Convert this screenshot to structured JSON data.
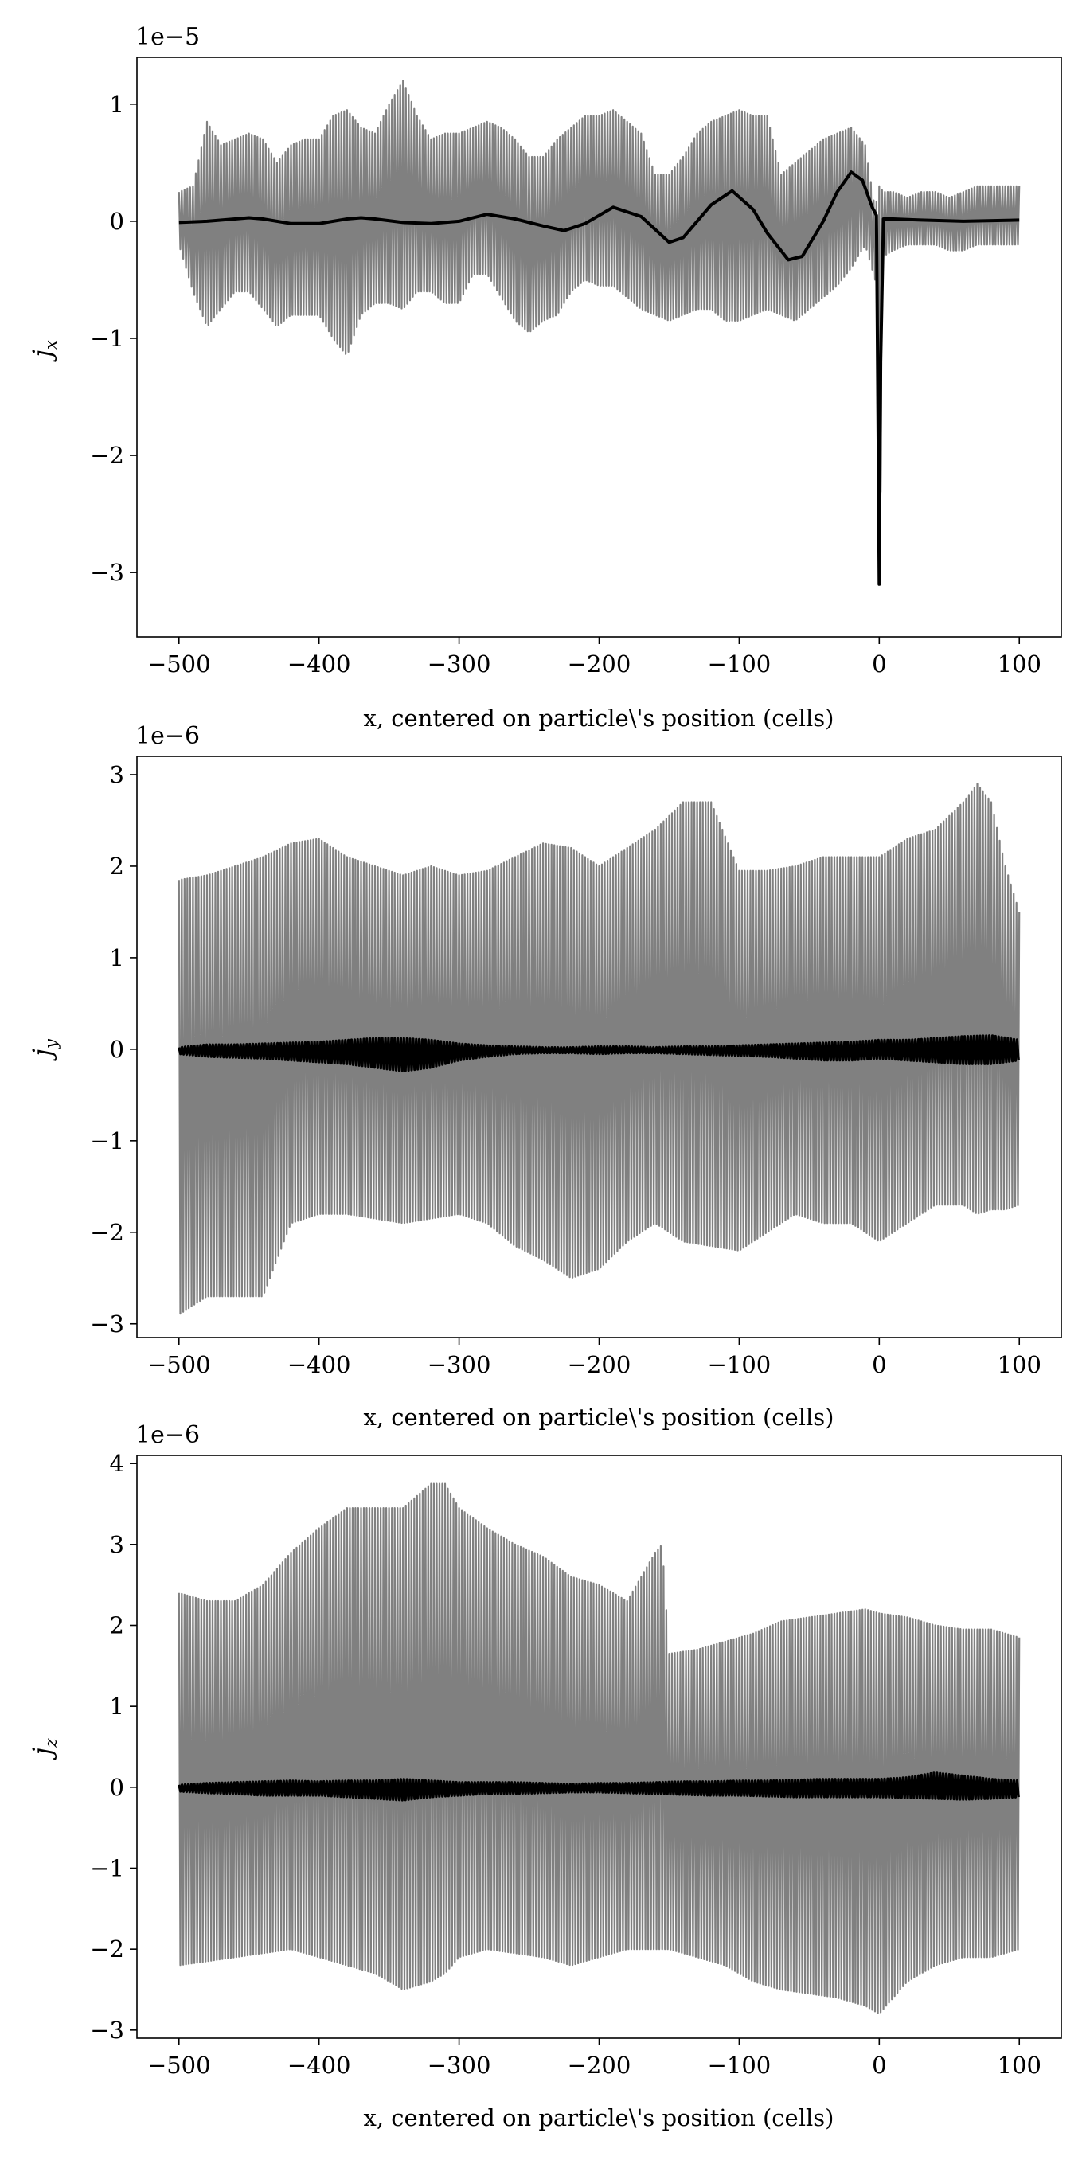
{
  "figure": {
    "xlabel": "x, centered on particle\\'s position (cells)"
  },
  "chart_data": [
    {
      "type": "line",
      "title": "",
      "xlabel": "x, centered on particle\\'s position (cells)",
      "ylabel_symbol": "j",
      "ylabel_sub": "x",
      "offset_text": "1e−5",
      "xlim": [
        -530,
        130
      ],
      "ylim": [
        -3.55,
        1.4
      ],
      "grid": false,
      "legend": "none",
      "xticks": [
        -500,
        -400,
        -300,
        -200,
        -100,
        0,
        100
      ],
      "xtick_labels": [
        "−500",
        "−400",
        "−300",
        "−200",
        "−100",
        "0",
        "100"
      ],
      "yticks": [
        -3,
        -2,
        -1,
        0,
        1
      ],
      "ytick_labels": [
        "−3",
        "−2",
        "−1",
        "0",
        "1"
      ],
      "series": [
        {
          "color": "#808080",
          "style": "dense-oscillation",
          "x": [
            -500,
            -490,
            -480,
            -470,
            -460,
            -450,
            -440,
            -430,
            -420,
            -410,
            -400,
            -390,
            -380,
            -370,
            -360,
            -350,
            -340,
            -330,
            -320,
            -310,
            -300,
            -290,
            -280,
            -270,
            -260,
            -250,
            -240,
            -230,
            -220,
            -210,
            -200,
            -190,
            -180,
            -170,
            -160,
            -150,
            -140,
            -130,
            -120,
            -110,
            -100,
            -90,
            -80,
            -70,
            -60,
            -50,
            -40,
            -30,
            -20,
            -10,
            -3,
            0,
            3,
            10,
            20,
            30,
            40,
            50,
            60,
            70,
            80,
            90,
            100
          ],
          "upper": [
            0.25,
            0.3,
            0.85,
            0.65,
            0.7,
            0.75,
            0.7,
            0.5,
            0.65,
            0.7,
            0.7,
            0.9,
            0.95,
            0.8,
            0.75,
            1.0,
            1.2,
            0.9,
            0.7,
            0.75,
            0.75,
            0.8,
            0.85,
            0.8,
            0.7,
            0.55,
            0.55,
            0.7,
            0.8,
            0.9,
            0.9,
            0.95,
            0.85,
            0.75,
            0.4,
            0.4,
            0.55,
            0.75,
            0.85,
            0.9,
            0.95,
            0.9,
            0.9,
            0.4,
            0.5,
            0.6,
            0.7,
            0.75,
            0.8,
            0.65,
            0.1,
            0.3,
            0.25,
            0.25,
            0.2,
            0.25,
            0.25,
            0.2,
            0.25,
            0.3,
            0.3,
            0.3,
            0.3
          ],
          "lower": [
            -0.2,
            -0.6,
            -0.9,
            -0.75,
            -0.6,
            -0.6,
            -0.75,
            -0.9,
            -0.8,
            -0.8,
            -0.8,
            -1.0,
            -1.15,
            -0.8,
            -0.7,
            -0.7,
            -0.75,
            -0.6,
            -0.6,
            -0.7,
            -0.7,
            -0.45,
            -0.45,
            -0.65,
            -0.85,
            -0.95,
            -0.85,
            -0.8,
            -0.6,
            -0.5,
            -0.55,
            -0.55,
            -0.65,
            -0.75,
            -0.8,
            -0.85,
            -0.8,
            -0.75,
            -0.75,
            -0.85,
            -0.85,
            -0.8,
            -0.75,
            -0.8,
            -0.85,
            -0.75,
            -0.65,
            -0.55,
            -0.4,
            -0.2,
            -0.5,
            -3.32,
            -0.3,
            -0.25,
            -0.2,
            -0.2,
            -0.2,
            -0.25,
            -0.25,
            -0.2,
            -0.2,
            -0.2,
            -0.2
          ]
        },
        {
          "color": "#000000",
          "style": "solid",
          "x": [
            -500,
            -480,
            -460,
            -450,
            -440,
            -420,
            -400,
            -380,
            -370,
            -360,
            -340,
            -320,
            -300,
            -280,
            -260,
            -240,
            -225,
            -210,
            -190,
            -170,
            -150,
            -140,
            -130,
            -120,
            -105,
            -90,
            -80,
            -65,
            -55,
            -40,
            -30,
            -20,
            -12,
            -5,
            -2,
            -1,
            0,
            1,
            3,
            10,
            30,
            60,
            100
          ],
          "y": [
            -0.01,
            0.0,
            0.02,
            0.03,
            0.02,
            -0.02,
            -0.02,
            0.02,
            0.03,
            0.02,
            -0.01,
            -0.02,
            0.0,
            0.06,
            0.02,
            -0.04,
            -0.08,
            -0.02,
            0.12,
            0.04,
            -0.18,
            -0.14,
            0.0,
            0.14,
            0.26,
            0.1,
            -0.1,
            -0.33,
            -0.3,
            0.0,
            0.25,
            0.42,
            0.35,
            0.12,
            0.05,
            -1.5,
            -3.1,
            -1.2,
            0.02,
            0.02,
            0.01,
            0.0,
            0.01
          ]
        }
      ]
    },
    {
      "type": "line",
      "title": "",
      "xlabel": "x, centered on particle\\'s position (cells)",
      "ylabel_symbol": "j",
      "ylabel_sub": "y",
      "offset_text": "1e−6",
      "xlim": [
        -530,
        130
      ],
      "ylim": [
        -3.15,
        3.2
      ],
      "grid": false,
      "legend": "none",
      "xticks": [
        -500,
        -400,
        -300,
        -200,
        -100,
        0,
        100
      ],
      "xtick_labels": [
        "−500",
        "−400",
        "−300",
        "−200",
        "−100",
        "0",
        "100"
      ],
      "yticks": [
        -3,
        -2,
        -1,
        0,
        1,
        2,
        3
      ],
      "ytick_labels": [
        "−3",
        "−2",
        "−1",
        "0",
        "1",
        "2",
        "3"
      ],
      "series": [
        {
          "color": "#808080",
          "style": "dense-oscillation",
          "x": [
            -500,
            -480,
            -460,
            -440,
            -420,
            -400,
            -380,
            -360,
            -340,
            -320,
            -300,
            -280,
            -260,
            -240,
            -220,
            -200,
            -180,
            -160,
            -140,
            -120,
            -100,
            -80,
            -60,
            -40,
            -20,
            0,
            20,
            40,
            60,
            70,
            80,
            90,
            100
          ],
          "upper": [
            1.85,
            1.9,
            2.0,
            2.1,
            2.25,
            2.3,
            2.1,
            2.0,
            1.9,
            2.0,
            1.9,
            1.95,
            2.1,
            2.25,
            2.2,
            2.0,
            2.2,
            2.4,
            2.7,
            2.7,
            1.95,
            1.95,
            2.0,
            2.1,
            2.1,
            2.1,
            2.3,
            2.4,
            2.7,
            2.9,
            2.7,
            2.0,
            1.5
          ],
          "lower": [
            -2.9,
            -2.7,
            -2.7,
            -2.7,
            -1.9,
            -1.8,
            -1.8,
            -1.85,
            -1.9,
            -1.85,
            -1.8,
            -1.9,
            -2.15,
            -2.3,
            -2.5,
            -2.4,
            -2.1,
            -1.9,
            -2.1,
            -2.15,
            -2.2,
            -2.0,
            -1.8,
            -1.9,
            -1.9,
            -2.1,
            -1.9,
            -1.7,
            -1.7,
            -1.8,
            -1.75,
            -1.75,
            -1.7
          ]
        },
        {
          "color": "#000000",
          "style": "thick-oscillation",
          "x": [
            -500,
            -480,
            -460,
            -440,
            -420,
            -400,
            -380,
            -360,
            -340,
            -320,
            -300,
            -280,
            -260,
            -240,
            -220,
            -200,
            -180,
            -160,
            -140,
            -120,
            -100,
            -80,
            -60,
            -40,
            -20,
            0,
            20,
            40,
            60,
            80,
            100
          ],
          "upper": [
            0.02,
            0.05,
            0.05,
            0.06,
            0.07,
            0.08,
            0.1,
            0.12,
            0.12,
            0.1,
            0.06,
            0.04,
            0.03,
            0.02,
            0.02,
            0.03,
            0.03,
            0.02,
            0.03,
            0.03,
            0.04,
            0.05,
            0.06,
            0.07,
            0.08,
            0.1,
            0.1,
            0.12,
            0.14,
            0.15,
            0.1
          ],
          "lower": [
            -0.05,
            -0.08,
            -0.09,
            -0.1,
            -0.12,
            -0.14,
            -0.16,
            -0.2,
            -0.24,
            -0.2,
            -0.12,
            -0.08,
            -0.05,
            -0.04,
            -0.04,
            -0.05,
            -0.04,
            -0.04,
            -0.05,
            -0.06,
            -0.07,
            -0.08,
            -0.1,
            -0.12,
            -0.12,
            -0.1,
            -0.12,
            -0.14,
            -0.16,
            -0.16,
            -0.12
          ]
        }
      ]
    },
    {
      "type": "line",
      "title": "",
      "xlabel": "x, centered on particle\\'s position (cells)",
      "ylabel_symbol": "j",
      "ylabel_sub": "z",
      "offset_text": "1e−6",
      "xlim": [
        -530,
        130
      ],
      "ylim": [
        -3.1,
        4.1
      ],
      "grid": false,
      "legend": "none",
      "xticks": [
        -500,
        -400,
        -300,
        -200,
        -100,
        0,
        100
      ],
      "xtick_labels": [
        "−500",
        "−400",
        "−300",
        "−200",
        "−100",
        "0",
        "100"
      ],
      "yticks": [
        -3,
        -2,
        -1,
        0,
        1,
        2,
        3,
        4
      ],
      "ytick_labels": [
        "−3",
        "−2",
        "−1",
        "0",
        "1",
        "2",
        "3",
        "4"
      ],
      "series": [
        {
          "color": "#808080",
          "style": "dense-oscillation",
          "x": [
            -500,
            -480,
            -460,
            -440,
            -420,
            -400,
            -380,
            -360,
            -340,
            -320,
            -310,
            -300,
            -280,
            -260,
            -240,
            -220,
            -200,
            -180,
            -170,
            -160,
            -155,
            -150,
            -130,
            -110,
            -90,
            -70,
            -50,
            -30,
            -10,
            0,
            20,
            40,
            60,
            80,
            100
          ],
          "upper": [
            2.4,
            2.3,
            2.3,
            2.5,
            2.9,
            3.2,
            3.45,
            3.45,
            3.45,
            3.75,
            3.75,
            3.45,
            3.2,
            3.0,
            2.85,
            2.6,
            2.5,
            2.3,
            2.6,
            2.9,
            3.0,
            1.65,
            1.7,
            1.8,
            1.9,
            2.05,
            2.1,
            2.15,
            2.2,
            2.15,
            2.1,
            2.0,
            1.95,
            1.95,
            1.85
          ],
          "lower": [
            -2.2,
            -2.15,
            -2.1,
            -2.05,
            -2.0,
            -2.1,
            -2.2,
            -2.3,
            -2.5,
            -2.4,
            -2.3,
            -2.1,
            -2.0,
            -2.05,
            -2.1,
            -2.2,
            -2.1,
            -2.0,
            -2.0,
            -2.0,
            -2.0,
            -2.0,
            -2.1,
            -2.2,
            -2.4,
            -2.5,
            -2.55,
            -2.6,
            -2.7,
            -2.8,
            -2.4,
            -2.2,
            -2.1,
            -2.1,
            -2.0
          ]
        },
        {
          "color": "#000000",
          "style": "thick-oscillation",
          "x": [
            -500,
            -480,
            -460,
            -440,
            -420,
            -400,
            -380,
            -360,
            -340,
            -320,
            -300,
            -280,
            -260,
            -240,
            -220,
            -200,
            -180,
            -160,
            -140,
            -120,
            -100,
            -80,
            -60,
            -40,
            -20,
            0,
            20,
            40,
            60,
            80,
            100
          ],
          "upper": [
            0.03,
            0.05,
            0.06,
            0.07,
            0.08,
            0.07,
            0.08,
            0.08,
            0.1,
            0.08,
            0.06,
            0.06,
            0.06,
            0.05,
            0.04,
            0.05,
            0.05,
            0.06,
            0.07,
            0.07,
            0.08,
            0.08,
            0.09,
            0.1,
            0.1,
            0.1,
            0.12,
            0.18,
            0.14,
            0.1,
            0.08
          ],
          "lower": [
            -0.05,
            -0.07,
            -0.08,
            -0.1,
            -0.1,
            -0.1,
            -0.12,
            -0.14,
            -0.16,
            -0.12,
            -0.1,
            -0.08,
            -0.08,
            -0.07,
            -0.06,
            -0.06,
            -0.07,
            -0.08,
            -0.09,
            -0.1,
            -0.1,
            -0.11,
            -0.12,
            -0.12,
            -0.12,
            -0.12,
            -0.13,
            -0.14,
            -0.15,
            -0.14,
            -0.12
          ]
        }
      ]
    }
  ]
}
